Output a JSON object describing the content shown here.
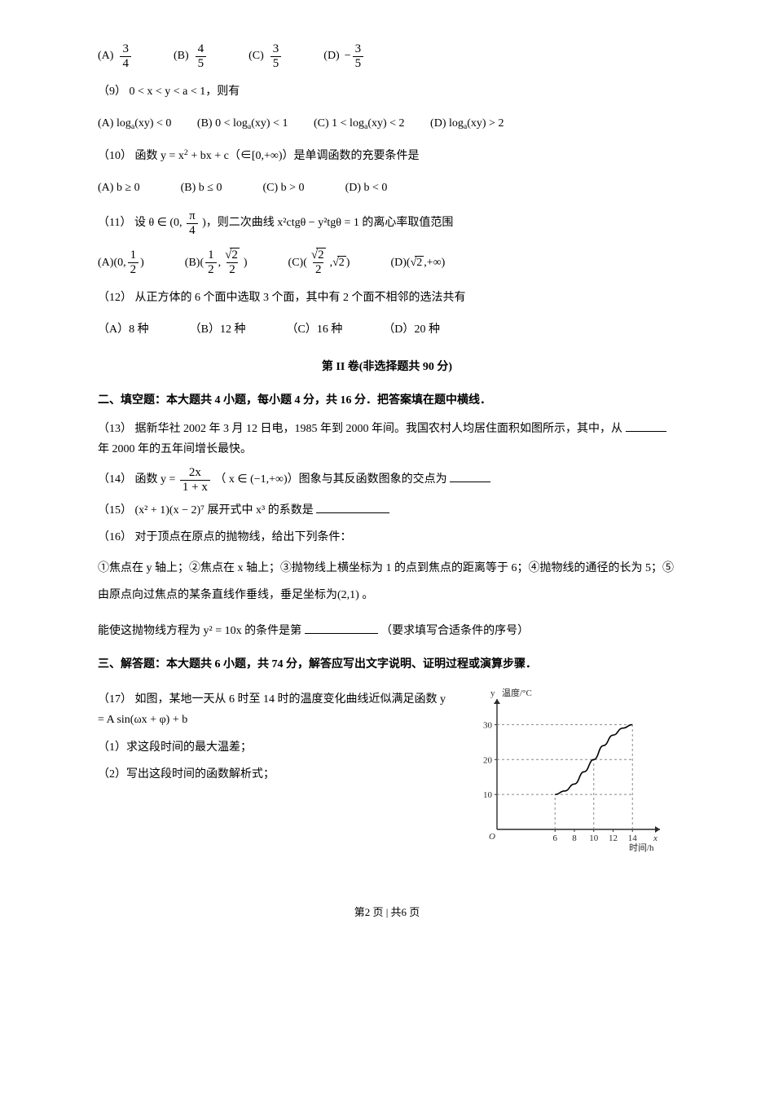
{
  "q8": {
    "opts": {
      "A": {
        "label": "(A)",
        "num": "3",
        "den": "4",
        "neg": false
      },
      "B": {
        "label": "(B)",
        "num": "4",
        "den": "5",
        "neg": false
      },
      "C": {
        "label": "(C)",
        "num": "3",
        "den": "5",
        "neg": false
      },
      "D": {
        "label": "(D)",
        "num": "3",
        "den": "5",
        "neg": true
      }
    }
  },
  "q9": {
    "stem_num": "（9）",
    "stem": "0 < x < y < a < 1，则有",
    "A": {
      "label": "(A)",
      "expr_pre": "log",
      "sub": "a",
      "expr_post": "(xy) < 0"
    },
    "B": {
      "label": "(B)",
      "expr": "0 < log",
      "sub": "a",
      "post": "(xy) < 1"
    },
    "C": {
      "label": "(C)",
      "expr": "1 < log",
      "sub": "a",
      "post": "(xy) < 2"
    },
    "D": {
      "label": "(D)",
      "expr": "log",
      "sub": "a",
      "post": "(xy) > 2"
    }
  },
  "q10": {
    "stem_num": "（10）",
    "stem_pre": "函数 y = x",
    "stem_sup": "2",
    "stem_post": " + bx + c（∈[0,+∞)）是单调函数的充要条件是",
    "A": {
      "label": "(A)",
      "text": "b ≥ 0"
    },
    "B": {
      "label": "(B)",
      "text": "b ≤ 0"
    },
    "C": {
      "label": "(C)",
      "text": "b > 0"
    },
    "D": {
      "label": "(D)",
      "text": "b < 0"
    }
  },
  "q11": {
    "stem_num": "（11）",
    "stem_pre": "设 θ ∈ (0,",
    "pi_num": "π",
    "pi_den": "4",
    "stem_post": ")，则二次曲线 x²ctgθ − y²tgθ = 1 的离心率取值范围",
    "A": {
      "label": "(A)"
    },
    "B": {
      "label": "(B)"
    },
    "C": {
      "label": "(C)"
    },
    "D": {
      "label": "(D)"
    }
  },
  "q12": {
    "stem_num": "（12）",
    "stem": "从正方体的 6 个面中选取 3 个面，其中有 2 个面不相邻的选法共有",
    "A": {
      "label": "（A）",
      "text": "8 种"
    },
    "B": {
      "label": "（B）",
      "text": "12 种"
    },
    "C": {
      "label": "（C）",
      "text": "16 种"
    },
    "D": {
      "label": "（D）",
      "text": "20 种"
    }
  },
  "section2_title": "第 II 卷(非选择题共 90 分)",
  "fill_header": "二、填空题：本大题共 4 小题，每小题 4 分，共 16 分．把答案填在题中横线．",
  "q13": {
    "num": "（13）",
    "text_a": "据新华社 2002 年 3 月 12 日电，1985 年到 2000 年间。我国农村人均居住面积如图所示，其中，从",
    "text_b": "年 2000 年的五年间增长最快。"
  },
  "q14": {
    "num": "（14）",
    "pre": "函数 y =",
    "frac_num": "2x",
    "frac_den": "1 + x",
    "mid": "（ x ∈ (−1,+∞)）图象与其反函数图象的交点为"
  },
  "q15": {
    "num": "（15）",
    "expr": "(x² + 1)(x − 2)⁷ 展开式中 x³ 的系数是"
  },
  "q16": {
    "num": "（16）",
    "stem": "对于顶点在原点的抛物线，给出下列条件：",
    "conds": "①焦点在 y 轴上；②焦点在 x 轴上；③抛物线上横坐标为 1 的点到焦点的距离等于 6；④抛物线的通径的长为 5；⑤由原点向过焦点的某条直线作垂线，垂足坐标为(2,1) 。",
    "tail_pre": "能使这抛物线方程为 y² = 10x 的条件是第",
    "tail_post": "（要求填写合适条件的序号）"
  },
  "solve_header": "三、解答题：本大题共 6 小题，共 74 分，解答应写出文字说明、证明过程或演算步骤．",
  "q17": {
    "num": "（17）",
    "stem": "如图，某地一天从 6 时至 14 时的温度变化曲线近似满足函数 y = A sin(ωx + φ) + b",
    "sub1": "（1）求这段时间的最大温差；",
    "sub2": "（2）写出这段时间的函数解析式；"
  },
  "chart": {
    "type": "line",
    "background_color": "#ffffff",
    "axis_color": "#2a2a2a",
    "grid_color": "#888888",
    "curve_color": "#000000",
    "y_label": "温度/°C",
    "x_label": "时间/h",
    "x_var": "x",
    "y_var": "y",
    "x_ticks": [
      6,
      8,
      10,
      12,
      14
    ],
    "y_ticks": [
      10,
      20,
      30
    ],
    "xlim": [
      0,
      16
    ],
    "ylim": [
      0,
      35
    ],
    "tick_fontsize": 11,
    "label_fontsize": 11,
    "curve_points": [
      {
        "x": 6,
        "y": 10
      },
      {
        "x": 7,
        "y": 11
      },
      {
        "x": 8,
        "y": 13
      },
      {
        "x": 9,
        "y": 16.5
      },
      {
        "x": 10,
        "y": 20
      },
      {
        "x": 11,
        "y": 24
      },
      {
        "x": 12,
        "y": 27
      },
      {
        "x": 13,
        "y": 29
      },
      {
        "x": 14,
        "y": 30
      }
    ],
    "dash_horizontals": [
      10,
      20,
      30
    ],
    "dash_verticals": [
      6,
      10,
      14
    ]
  },
  "footer": "第2 页 | 共6 页"
}
